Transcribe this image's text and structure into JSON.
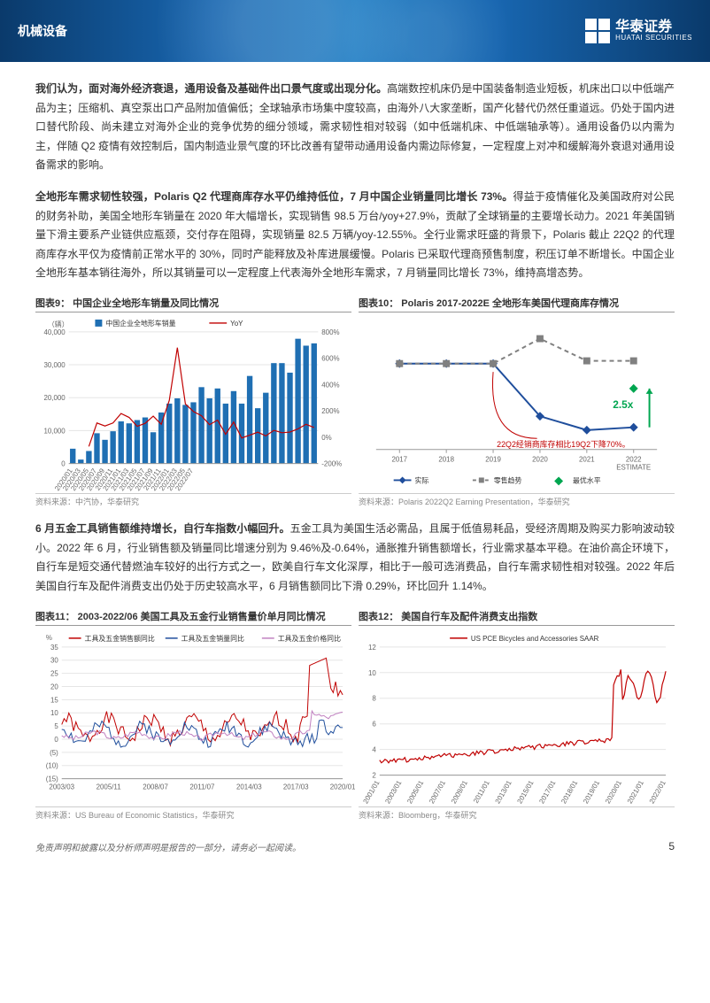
{
  "header": {
    "category": "机械设备",
    "brand_cn": "华泰证券",
    "brand_en": "HUATAI SECURITIES"
  },
  "para1_bold": "我们认为，面对海外经济衰退，通用设备及基础件出口景气度或出现分化。",
  "para1_rest": "高端数控机床仍是中国装备制造业短板，机床出口以中低端产品为主；压缩机、真空泵出口产品附加值偏低；全球轴承市场集中度较高，由海外八大家垄断，国产化替代仍然任重道远。仍处于国内进口替代阶段、尚未建立对海外企业的竞争优势的细分领域，需求韧性相对较弱（如中低端机床、中低端轴承等）。通用设备仍以内需为主，伴随 Q2 疫情有效控制后，国内制造业景气度的环比改善有望带动通用设备内需边际修复，一定程度上对冲和缓解海外衰退对通用设备需求的影响。",
  "para2_bold": "全地形车需求韧性较强，Polaris Q2 代理商库存水平仍维持低位，7 月中国企业销量同比增长 73%。",
  "para2_rest": "得益于疫情催化及美国政府对公民的财务补助，美国全地形车销量在 2020 年大幅增长，实现销售 98.5 万台/yoy+27.9%，贡献了全球销量的主要增长动力。2021 年美国销量下滑主要系产业链供应瓶颈，交付存在阻碍，实现销量 82.5 万辆/yoy-12.55%。全行业需求旺盛的背景下，Polaris 截止 22Q2 的代理商库存水平仅为疫情前正常水平的 30%，同时产能释放及补库进展缓慢。Polaris 已采取代理商预售制度，积压订单不断增长。中国企业全地形车基本销往海外，所以其销量可以一定程度上代表海外全地形车需求，7 月销量同比增长 73%，维持高增态势。",
  "para3_bold": "6 月五金工具销售额维持增长，自行车指数小幅回升。",
  "para3_rest": "五金工具为美国生活必需品，且属于低值易耗品，受经济周期及购买力影响波动较小。2022 年 6 月，行业销售额及销量同比增速分别为 9.46%及-0.64%，通胀推升销售额增长，行业需求基本平稳。在油价高企环境下，自行车是短交通代替燃油车较好的出行方式之一，欧美自行车文化深厚，相比于一般可选消费品，自行车需求韧性相对较强。2022 年后美国自行车及配件消费支出仍处于历史较高水平，6 月销售额同比下滑 0.29%，环比回升 1.14%。",
  "chart9": {
    "title": "图表9：  中国企业全地形车销量及同比情况",
    "source": "资料来源：中汽协，华泰研究",
    "type": "combo-bar-line",
    "y_left_label": "（辆）",
    "y_left_ticks": [
      0,
      10000,
      20000,
      30000,
      40000
    ],
    "y_right_ticks": [
      -200,
      0,
      200,
      400,
      600,
      800
    ],
    "y_right_suffix": "%",
    "x_labels": [
      "2020/01",
      "2020/03",
      "2020/05",
      "2020/07",
      "2020/09",
      "2020/11",
      "2021/01",
      "2021/03",
      "2021/05",
      "2021/07",
      "2021/09",
      "2021/11",
      "2022/01",
      "2022/03",
      "2022/05",
      "2022/07"
    ],
    "bars": [
      4500,
      1200,
      3800,
      9200,
      7200,
      9800,
      12800,
      12200,
      13200,
      14000,
      9500,
      15500,
      18200,
      19800,
      17800,
      18600,
      23200,
      19800,
      22800,
      18200,
      22000,
      18200,
      26600,
      16800,
      21500,
      30500,
      30500,
      27600,
      37900,
      35800,
      36500
    ],
    "bar_color": "#1f6fb3",
    "line": [
      null,
      null,
      -70,
      108,
      85,
      108,
      180,
      150,
      83,
      105,
      160,
      98,
      280,
      680,
      252,
      195,
      163,
      95,
      130,
      22,
      115,
      -6,
      15,
      38,
      10,
      52,
      34,
      39,
      63,
      98,
      73
    ],
    "line_color": "#c00000",
    "legend_bar": "中国企业全地形车销量",
    "legend_line": "YoY",
    "bg": "#ffffff",
    "grid": "#e5e5e5",
    "axis": "#999"
  },
  "chart10": {
    "title": "图表10：  Polaris 2017-2022E 全地形车美国代理商库存情况",
    "source": "资料来源：Polaris 2022Q2 Earning Presentation，华泰研究",
    "type": "line-multi",
    "x_labels": [
      "2017",
      "2018",
      "2019",
      "2020",
      "2021",
      "2022\nESTIMATE"
    ],
    "series": [
      {
        "name": "实际",
        "style": "solid",
        "color": "#1f4e9c",
        "marker": "diamond",
        "values": [
          41,
          41,
          41,
          22,
          17,
          18
        ]
      },
      {
        "name": "零售趋势",
        "style": "dash",
        "color": "#808080",
        "marker": "square",
        "values": [
          41,
          41,
          41,
          50,
          42,
          42
        ]
      },
      {
        "name": "最优水平",
        "style": "point",
        "color": "#00a650",
        "marker": "diamond",
        "values": [
          null,
          null,
          null,
          null,
          null,
          32
        ]
      }
    ],
    "annotation_green": "2.5x",
    "annotation_red": "22Q2经销商库存相比19Q2下降70%。",
    "bg": "#ffffff",
    "axis": "#999"
  },
  "chart11": {
    "title": "图表11：  2003-2022/06 美国工具及五金行业销售量价单月同比情况",
    "source": "资料来源：US Bureau of Economic Statistics，华泰研究",
    "type": "line-multi",
    "y_label": "%",
    "y_ticks": [
      -15,
      -10,
      -5,
      0,
      5,
      10,
      15,
      20,
      25,
      30,
      35
    ],
    "x_labels": [
      "2003/03",
      "2005/11",
      "2008/07",
      "2011/07",
      "2014/03",
      "2017/03",
      "2020/01"
    ],
    "legend": [
      {
        "name": "工具及五金销售额同比",
        "color": "#c00000"
      },
      {
        "name": "工具及五金销量同比",
        "color": "#1f4e9c"
      },
      {
        "name": "工具及五金价格同比",
        "color": "#c080c0"
      }
    ],
    "bg": "#ffffff",
    "grid": "#e5e5e5",
    "axis": "#999"
  },
  "chart12": {
    "title": "图表12：  美国自行车及配件消费支出指数",
    "source": "资料来源：Bloomberg，华泰研究",
    "type": "line",
    "y_ticks": [
      2,
      4,
      6,
      8,
      10,
      12
    ],
    "x_labels": [
      "2001/01",
      "2003/01",
      "2005/01",
      "2007/01",
      "2009/01",
      "2011/01",
      "2013/01",
      "2015/01",
      "2017/01",
      "2018/01",
      "2019/01",
      "2020/01",
      "2021/01",
      "2022/01"
    ],
    "legend_line": "US PCE Bicycles and Accessories SAAR",
    "line_color": "#c00000",
    "bg": "#ffffff",
    "grid": "#e5e5e5",
    "axis": "#999"
  },
  "footer": {
    "disclaimer": "免责声明和披露以及分析师声明是报告的一部分，请务必一起阅读。",
    "page": "5"
  }
}
